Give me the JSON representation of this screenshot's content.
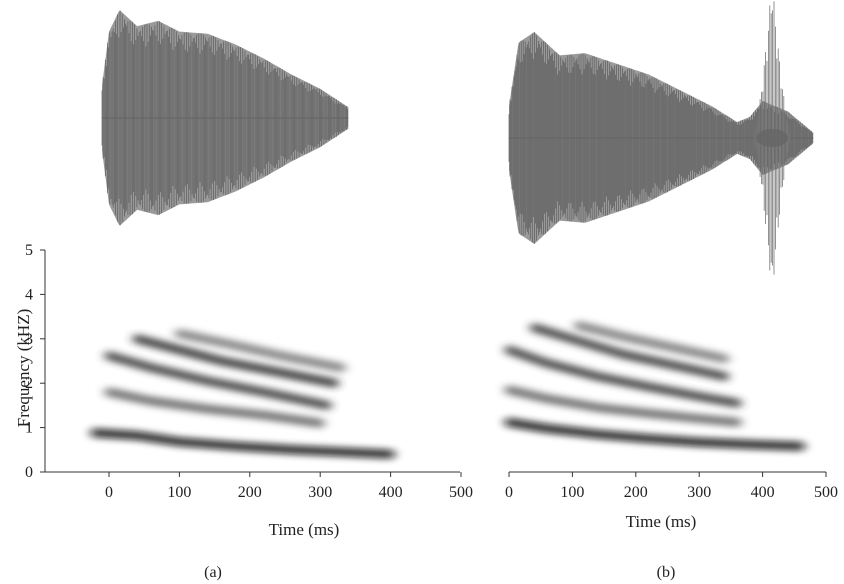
{
  "figure": {
    "panels": [
      {
        "label": "(a)"
      },
      {
        "label": "(b)"
      }
    ]
  },
  "chart_data": [
    {
      "type": "heatmap",
      "panel": "(a)",
      "description_of_marks": "waveform above spectrogram",
      "title": "",
      "xlabel": "Time (ms)",
      "ylabel": "Frequency (kHZ)",
      "xlim": [
        -60,
        500
      ],
      "ylim": [
        0,
        5
      ],
      "xticks": [
        0,
        100,
        200,
        300,
        400,
        500
      ],
      "yticks": [
        0,
        1,
        2,
        3,
        4,
        5
      ],
      "grid": false,
      "waveform": {
        "start_ms": -10,
        "end_ms": 340,
        "envelope_ms": [
          -10,
          0,
          15,
          40,
          70,
          100,
          140,
          180,
          220,
          260,
          300,
          340
        ],
        "envelope_amp": [
          0.3,
          0.8,
          1.0,
          0.85,
          0.9,
          0.8,
          0.78,
          0.68,
          0.55,
          0.4,
          0.27,
          0.1
        ]
      },
      "formants": [
        {
          "t": [
            -20,
            40,
            100,
            180,
            260,
            330,
            400
          ],
          "f": [
            0.88,
            0.82,
            0.68,
            0.58,
            0.5,
            0.45,
            0.4
          ],
          "intensity": 1.0
        },
        {
          "t": [
            0,
            60,
            140,
            220,
            300
          ],
          "f": [
            1.8,
            1.6,
            1.42,
            1.28,
            1.1
          ],
          "intensity": 0.55
        },
        {
          "t": [
            0,
            60,
            140,
            220,
            310
          ],
          "f": [
            2.62,
            2.35,
            2.05,
            1.8,
            1.5
          ],
          "intensity": 0.8
        },
        {
          "t": [
            40,
            100,
            160,
            240,
            320
          ],
          "f": [
            3.0,
            2.75,
            2.5,
            2.25,
            2.0
          ],
          "intensity": 0.85
        },
        {
          "t": [
            100,
            180,
            250,
            330
          ],
          "f": [
            3.12,
            2.85,
            2.6,
            2.35
          ],
          "intensity": 0.45
        },
        {
          "t": [
            290,
            340
          ],
          "f": [
            2.15,
            2.15
          ],
          "intensity": 0.9
        }
      ]
    },
    {
      "type": "heatmap",
      "panel": "(b)",
      "description_of_marks": "waveform above spectrogram",
      "title": "",
      "xlabel": "Time (ms)",
      "ylabel": "",
      "xlim": [
        0,
        500
      ],
      "ylim": [
        0,
        5
      ],
      "xticks": [
        0,
        100,
        200,
        300,
        400,
        500
      ],
      "grid": false,
      "waveform": {
        "start_ms": 0,
        "end_ms": 480,
        "envelope_ms": [
          0,
          15,
          40,
          80,
          120,
          170,
          220,
          270,
          320,
          360,
          380,
          400,
          420,
          440,
          460,
          480
        ],
        "envelope_amp": [
          0.3,
          0.9,
          1.0,
          0.78,
          0.8,
          0.7,
          0.6,
          0.45,
          0.3,
          0.15,
          0.2,
          0.35,
          0.3,
          0.25,
          0.15,
          0.05
        ]
      },
      "burst": {
        "start_ms": 385,
        "end_ms": 445,
        "peak_amp": 1.5
      },
      "formants": [
        {
          "t": [
            0,
            60,
            140,
            220,
            300,
            380,
            460
          ],
          "f": [
            1.12,
            0.98,
            0.85,
            0.75,
            0.67,
            0.62,
            0.58
          ],
          "intensity": 1.0
        },
        {
          "t": [
            0,
            60,
            140,
            220,
            300,
            360
          ],
          "f": [
            1.85,
            1.65,
            1.45,
            1.32,
            1.2,
            1.12
          ],
          "intensity": 0.55
        },
        {
          "t": [
            0,
            60,
            140,
            220,
            300,
            360
          ],
          "f": [
            2.75,
            2.45,
            2.15,
            1.92,
            1.7,
            1.55
          ],
          "intensity": 0.8
        },
        {
          "t": [
            40,
            110,
            180,
            260,
            340
          ],
          "f": [
            3.25,
            2.95,
            2.65,
            2.4,
            2.15
          ],
          "intensity": 0.8
        },
        {
          "t": [
            110,
            180,
            260,
            340
          ],
          "f": [
            3.3,
            3.05,
            2.8,
            2.55
          ],
          "intensity": 0.45
        }
      ],
      "harmonics": {
        "start_ms": 370,
        "end_ms": 460,
        "f": [
          0.8,
          1.0,
          1.15,
          1.32,
          1.5,
          1.67,
          1.85,
          2.03,
          2.2,
          2.38,
          2.55,
          2.72,
          2.9,
          3.07,
          3.25
        ]
      }
    }
  ]
}
